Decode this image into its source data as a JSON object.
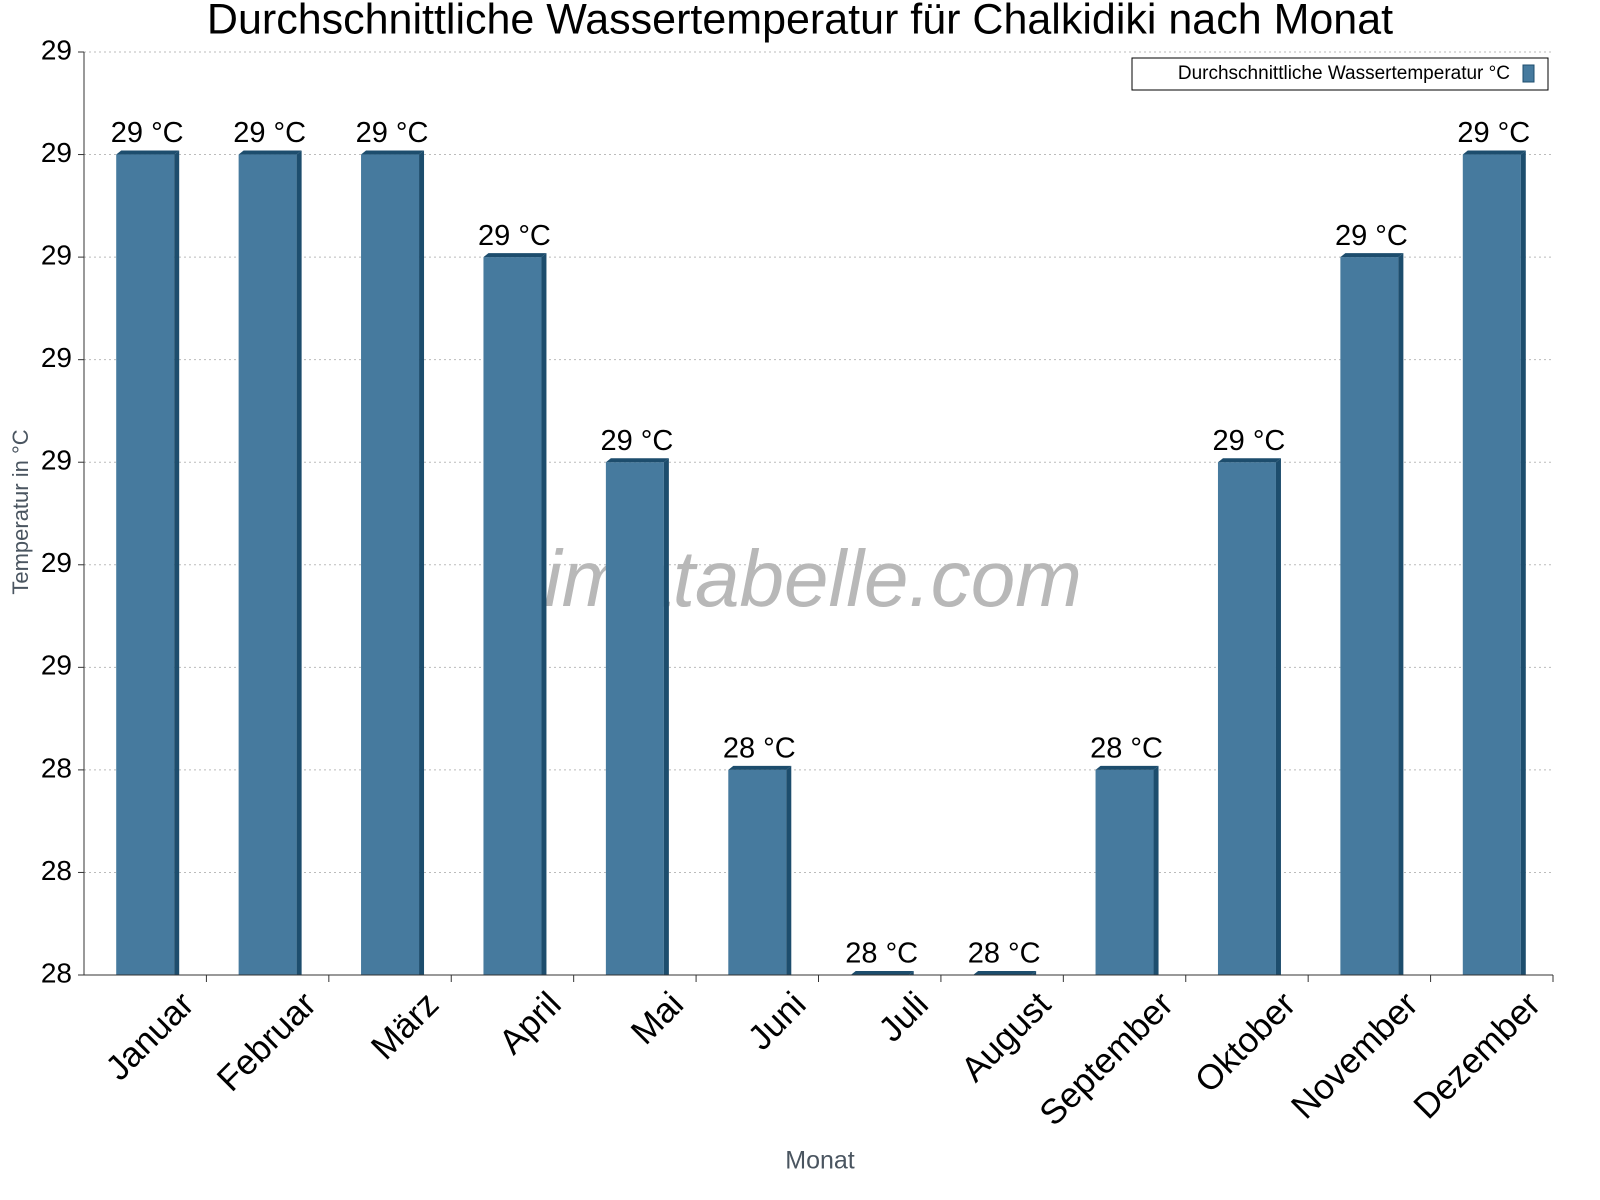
{
  "chart_data": {
    "type": "bar",
    "title": "Durchschnittliche Wassertemperatur für Chalkidiki nach Monat",
    "x_label": "Monat",
    "y_label": "Temperatur in °C",
    "watermark": "klimatabelle.com",
    "categories": [
      "Januar",
      "Februar",
      "März",
      "April",
      "Mai",
      "Juni",
      "Juli",
      "August",
      "September",
      "Oktober",
      "November",
      "Dezember"
    ],
    "series": [
      {
        "name": "Durchschnittliche Wassertemperatur °C",
        "color": "#467a9e",
        "values": [
          29.0,
          29.0,
          29.0,
          28.9,
          28.7,
          28.4,
          28.2,
          28.2,
          28.4,
          28.7,
          28.9,
          29.0
        ],
        "value_labels": [
          "29 °C",
          "29 °C",
          "29 °C",
          "29 °C",
          "29 °C",
          "28 °C",
          "28 °C",
          "28 °C",
          "28 °C",
          "29 °C",
          "29 °C",
          "29 °C"
        ]
      }
    ],
    "ylim": [
      28.2,
      29.1
    ],
    "yticks": [
      {
        "value": 28.2,
        "label": "28"
      },
      {
        "value": 28.3,
        "label": "28"
      },
      {
        "value": 28.4,
        "label": "28"
      },
      {
        "value": 28.5,
        "label": "29"
      },
      {
        "value": 28.6,
        "label": "29"
      },
      {
        "value": 28.7,
        "label": "29"
      },
      {
        "value": 28.8,
        "label": "29"
      },
      {
        "value": 28.9,
        "label": "29"
      },
      {
        "value": 29.0,
        "label": "29"
      },
      {
        "value": 29.1,
        "label": "29"
      }
    ],
    "grid": true,
    "legend": "upper right"
  }
}
